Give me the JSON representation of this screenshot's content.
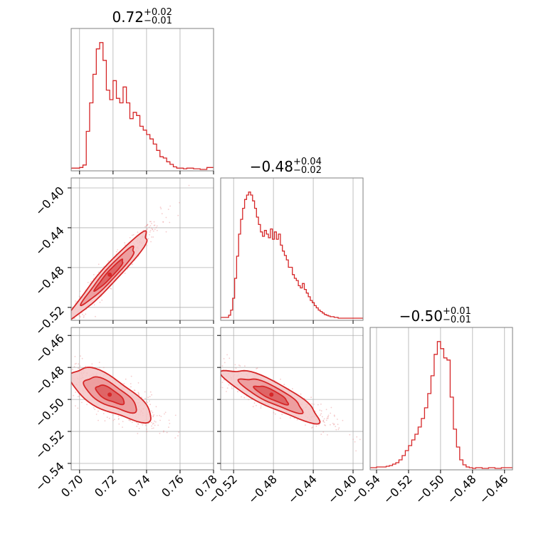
{
  "colors": {
    "accent": "#d62728",
    "fill_light": "#f5c6c7",
    "fill_mid": "#eb9698",
    "fill_dark": "#dc5a5c",
    "scatter": "#e98f90",
    "grid": "#b0b0b0",
    "frame": "#7f7f7f"
  },
  "chart_data": {
    "type": "corner",
    "title": "",
    "parameters": [
      {
        "index": 0,
        "title": {
          "median": "0.72",
          "upper": "+0.02",
          "lower": "−0.01"
        },
        "range": [
          0.695,
          0.78
        ],
        "ticks": [
          0.7,
          0.72,
          0.74,
          0.76,
          0.78
        ],
        "tick_labels": [
          "0.70",
          "0.72",
          "0.74",
          "0.76",
          "0.78"
        ],
        "hist_edges": [
          0.695,
          0.7,
          0.702,
          0.704,
          0.706,
          0.708,
          0.71,
          0.712,
          0.714,
          0.716,
          0.718,
          0.72,
          0.722,
          0.724,
          0.726,
          0.728,
          0.73,
          0.732,
          0.734,
          0.736,
          0.738,
          0.74,
          0.742,
          0.744,
          0.746,
          0.748,
          0.75,
          0.752,
          0.754,
          0.756,
          0.758,
          0.76,
          0.762,
          0.764,
          0.768,
          0.772,
          0.776,
          0.78
        ],
        "hist_counts": [
          2,
          3,
          7,
          60,
          105,
          150,
          190,
          200,
          172,
          125,
          110,
          140,
          112,
          105,
          130,
          105,
          80,
          90,
          85,
          68,
          62,
          55,
          48,
          40,
          30,
          20,
          18,
          12,
          8,
          4,
          2,
          2,
          1,
          2,
          1,
          0,
          3
        ]
      },
      {
        "index": 1,
        "title": {
          "median": "−0.48",
          "upper": "+0.04",
          "lower": "−0.02"
        },
        "range": [
          -0.533,
          -0.39
        ],
        "ticks": [
          -0.52,
          -0.48,
          -0.44,
          -0.4
        ],
        "tick_labels": [
          "−0.52",
          "−0.48",
          "−0.44",
          "−0.40"
        ],
        "hist_edges": [
          -0.533,
          -0.525,
          -0.523,
          -0.521,
          -0.519,
          -0.517,
          -0.515,
          -0.513,
          -0.511,
          -0.509,
          -0.507,
          -0.505,
          -0.503,
          -0.501,
          -0.499,
          -0.497,
          -0.495,
          -0.493,
          -0.491,
          -0.489,
          -0.487,
          -0.485,
          -0.483,
          -0.481,
          -0.479,
          -0.477,
          -0.475,
          -0.473,
          -0.471,
          -0.469,
          -0.467,
          -0.465,
          -0.463,
          -0.461,
          -0.459,
          -0.457,
          -0.455,
          -0.453,
          -0.451,
          -0.449,
          -0.447,
          -0.445,
          -0.443,
          -0.441,
          -0.439,
          -0.437,
          -0.435,
          -0.433,
          -0.431,
          -0.429,
          -0.427,
          -0.425,
          -0.423,
          -0.421,
          -0.419,
          -0.417,
          -0.415,
          -0.411,
          -0.405,
          -0.399,
          -0.39
        ],
        "hist_counts": [
          2,
          5,
          12,
          28,
          55,
          85,
          115,
          135,
          150,
          162,
          168,
          172,
          168,
          160,
          150,
          138,
          128,
          118,
          112,
          120,
          115,
          110,
          122,
          108,
          118,
          108,
          115,
          100,
          92,
          86,
          80,
          70,
          70,
          60,
          55,
          52,
          45,
          42,
          48,
          40,
          35,
          30,
          25,
          22,
          18,
          15,
          12,
          10,
          8,
          6,
          5,
          4,
          3,
          3,
          2,
          2,
          1,
          1,
          1,
          1
        ]
      },
      {
        "index": 2,
        "title": {
          "median": "−0.50",
          "upper": "+0.01",
          "lower": "−0.01"
        },
        "range": [
          -0.544,
          -0.455
        ],
        "ticks": [
          -0.54,
          -0.52,
          -0.5,
          -0.48,
          -0.46
        ],
        "tick_labels": [
          "−0.54",
          "−0.52",
          "−0.50",
          "−0.48",
          "−0.46"
        ],
        "hist_edges": [
          -0.544,
          -0.54,
          -0.534,
          -0.532,
          -0.53,
          -0.528,
          -0.526,
          -0.524,
          -0.522,
          -0.52,
          -0.518,
          -0.516,
          -0.514,
          -0.512,
          -0.51,
          -0.508,
          -0.506,
          -0.504,
          -0.502,
          -0.5,
          -0.498,
          -0.496,
          -0.494,
          -0.492,
          -0.49,
          -0.488,
          -0.486,
          -0.484,
          -0.482,
          -0.48,
          -0.478,
          -0.474,
          -0.47,
          -0.466,
          -0.462,
          -0.455
        ],
        "hist_counts": [
          1,
          2,
          3,
          4,
          6,
          8,
          12,
          18,
          25,
          32,
          40,
          48,
          58,
          70,
          85,
          105,
          130,
          160,
          178,
          168,
          155,
          152,
          100,
          55,
          30,
          12,
          5,
          2,
          1,
          0,
          1,
          0,
          1,
          0,
          1
        ]
      }
    ],
    "pairs": [
      {
        "x": 0,
        "y": 1,
        "correlation": 0.97,
        "center": [
          0.718,
          -0.487
        ],
        "scatter_spread": [
          0.012,
          0.022
        ]
      },
      {
        "x": 0,
        "y": 2,
        "correlation": -0.78,
        "center": [
          0.718,
          -0.497
        ],
        "scatter_spread": [
          0.012,
          0.008
        ]
      },
      {
        "x": 1,
        "y": 2,
        "correlation": -0.88,
        "center": [
          -0.482,
          -0.497
        ],
        "scatter_spread": [
          0.024,
          0.008
        ]
      }
    ],
    "grid": true,
    "contour_levels": 3
  }
}
